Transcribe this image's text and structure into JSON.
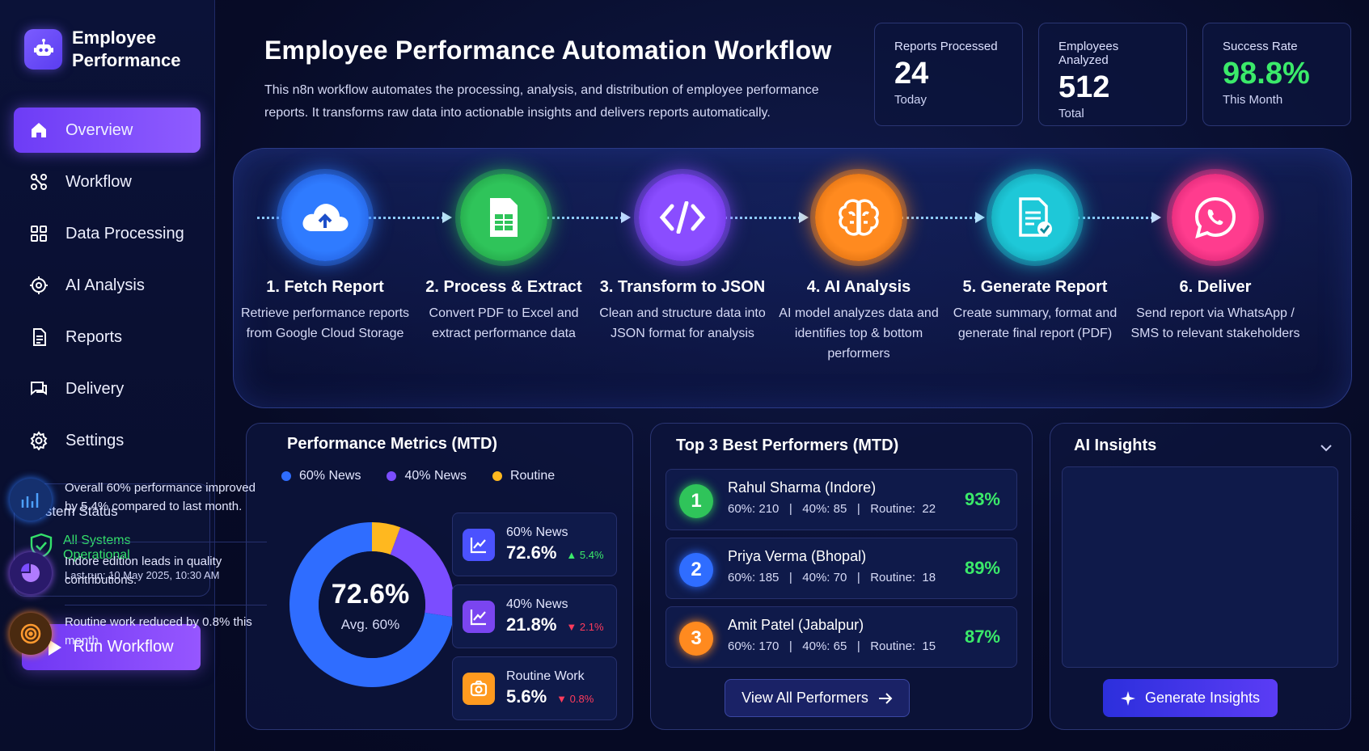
{
  "brand": {
    "line1": "Employee",
    "line2": "Performance",
    "logo_icon": "robot-icon"
  },
  "sidebar": {
    "items": [
      {
        "label": "Overview",
        "icon": "home-icon",
        "active": true
      },
      {
        "label": "Workflow",
        "icon": "workflow-icon"
      },
      {
        "label": "Data Processing",
        "icon": "grid-icon"
      },
      {
        "label": "AI Analysis",
        "icon": "ai-gear-icon"
      },
      {
        "label": "Reports",
        "icon": "document-icon"
      },
      {
        "label": "Delivery",
        "icon": "chat-icon"
      },
      {
        "label": "Settings",
        "icon": "gear-icon"
      }
    ],
    "status": {
      "title": "System Status",
      "state": "All Systems Operational",
      "last_run": "Last run: 10 May 2025,  10:30 AM"
    },
    "run_button": "Run Workflow"
  },
  "header": {
    "title": "Employee Performance Automation Workflow",
    "description": "This n8n workflow automates the processing, analysis, and distribution of employee performance reports. It transforms raw data into actionable insights and delivers reports automatically."
  },
  "stats": [
    {
      "label": "Reports Processed",
      "value": "24",
      "sub": "Today",
      "color": "#ffffff"
    },
    {
      "label": "Employees Analyzed",
      "value": "512",
      "sub": "Total",
      "color": "#ffffff"
    },
    {
      "label": "Success Rate",
      "value": "98.8%",
      "sub": "This Month",
      "color": "#3bea6a"
    }
  ],
  "workflow": {
    "steps": [
      {
        "title": "1. Fetch Report",
        "desc": "Retrieve performance reports from Google Cloud Storage",
        "icon": "cloud-upload-icon",
        "color": "#2f7bff"
      },
      {
        "title": "2. Process & Extract",
        "desc": "Convert PDF to Excel and extract performance data",
        "icon": "spreadsheet-icon",
        "color": "#2fc45a"
      },
      {
        "title": "3. Transform to JSON",
        "desc": "Clean and structure data into JSON format for analysis",
        "icon": "code-icon",
        "color": "#8a4dff"
      },
      {
        "title": "4. AI Analysis",
        "desc": "AI model analyzes data and identifies top & bottom performers",
        "icon": "brain-icon",
        "color": "#ff8a1f"
      },
      {
        "title": "5. Generate Report",
        "desc": "Create summary, format and generate final report (PDF)",
        "icon": "report-check-icon",
        "color": "#1ec8d8"
      },
      {
        "title": "6. Deliver",
        "desc": "Send report via WhatsApp / SMS to relevant stakeholders",
        "icon": "whatsapp-icon",
        "color": "#ff3c8e"
      }
    ]
  },
  "metrics": {
    "title": "Performance Metrics (MTD)",
    "legend": [
      {
        "label": "60% News",
        "color": "#2f6dff"
      },
      {
        "label": "40% News",
        "color": "#7b4dff"
      },
      {
        "label": "Routine",
        "color": "#ffb81f"
      }
    ],
    "donut": {
      "center_value": "72.6%",
      "center_label": "Avg. 60%"
    },
    "cards": [
      {
        "label": "60% News",
        "value": "72.6%",
        "delta": "▲ 5.4%",
        "delta_color": "#3bea6a",
        "icon": "trend-up-icon",
        "icon_bg": "#4b52ff"
      },
      {
        "label": "40% News",
        "value": "21.8%",
        "delta": "▼ 2.1%",
        "delta_color": "#ff3b5c",
        "icon": "trend-up-icon",
        "icon_bg": "#7a45f0"
      },
      {
        "label": "Routine Work",
        "value": "5.6%",
        "delta": "▼ 0.8%",
        "delta_color": "#ff3b5c",
        "icon": "camera-icon",
        "icon_bg": "#ff9a1f"
      }
    ]
  },
  "chart_data": {
    "type": "pie",
    "categories": [
      "60% News",
      "40% News",
      "Routine"
    ],
    "values": [
      72.6,
      21.8,
      5.6
    ],
    "title": "Performance Metrics (MTD)"
  },
  "performers": {
    "title": "Top 3 Best Performers (MTD)",
    "list": [
      {
        "rank": "1",
        "name": "Rahul Sharma (Indore)",
        "stats": "60%: 210   |   40%: 85   |   Routine:  22",
        "pct": "93%",
        "color": "#2fc45a"
      },
      {
        "rank": "2",
        "name": "Priya Verma (Bhopal)",
        "stats": "60%: 185   |   40%: 70   |   Routine:  18",
        "pct": "89%",
        "color": "#2f6dff"
      },
      {
        "rank": "3",
        "name": "Amit Patel (Jabalpur)",
        "stats": "60%: 170   |   40%: 65   |   Routine:  15",
        "pct": "87%",
        "color": "#ff8a1f"
      }
    ],
    "view_all": "View All Performers"
  },
  "insights": {
    "title": "AI Insights",
    "items": [
      {
        "text": "Overall 60% performance improved by 5.4% compared to last month.",
        "icon": "bar-chart-icon",
        "color": "#2f7bff"
      },
      {
        "text": "Indore edition leads in quality contributions.",
        "icon": "pie-chart-icon",
        "color": "#9b5cff"
      },
      {
        "text": "Routine work reduced by 0.8% this month.",
        "icon": "target-icon",
        "color": "#ff8a1f"
      }
    ],
    "button": "Generate Insights"
  }
}
